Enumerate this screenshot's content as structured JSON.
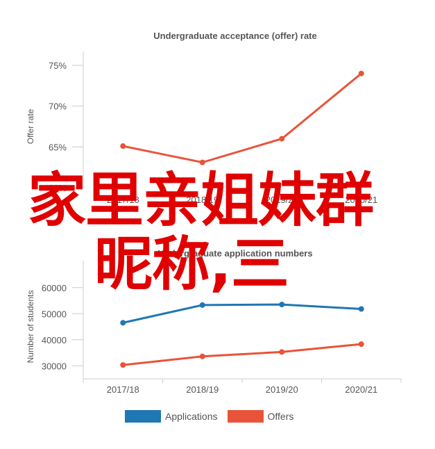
{
  "overlay": {
    "line1": "家里亲姐妹群",
    "line2": "昵称,三"
  },
  "colors": {
    "applications": "#1f77b4",
    "offers": "#e8533a",
    "axis": "#cccccc",
    "text": "#555555"
  },
  "legend": {
    "applications_label": "Applications",
    "offers_label": "Offers"
  },
  "chart_data": [
    {
      "type": "line",
      "title": "Undergraduate acceptance (offer) rate",
      "ylabel": "Offer rate",
      "xlabel": "",
      "categories": [
        "2017/18",
        "2018/19",
        "2019/20",
        "2020/21"
      ],
      "ylim": [
        60,
        75
      ],
      "yticks": [
        "60%",
        "65%",
        "70%",
        "75%"
      ],
      "series": [
        {
          "values": [
            65.1,
            63.1,
            66.0,
            74.0
          ],
          "color": "#e8533a"
        }
      ],
      "grid": false
    },
    {
      "type": "line",
      "title": "Undergraduate application numbers",
      "ylabel": "Number of students",
      "xlabel": "",
      "categories": [
        "2017/18",
        "2018/19",
        "2019/20",
        "2020/21"
      ],
      "ylim": [
        25000,
        65000
      ],
      "yticks": [
        "30000",
        "40000",
        "50000",
        "60000"
      ],
      "series": [
        {
          "name": "Applications",
          "values": [
            46500,
            53300,
            53500,
            51800
          ],
          "color": "#1f77b4"
        },
        {
          "name": "Offers",
          "values": [
            30300,
            33600,
            35300,
            38300
          ],
          "color": "#e8533a"
        }
      ],
      "legend": "bottom",
      "grid": false
    }
  ]
}
